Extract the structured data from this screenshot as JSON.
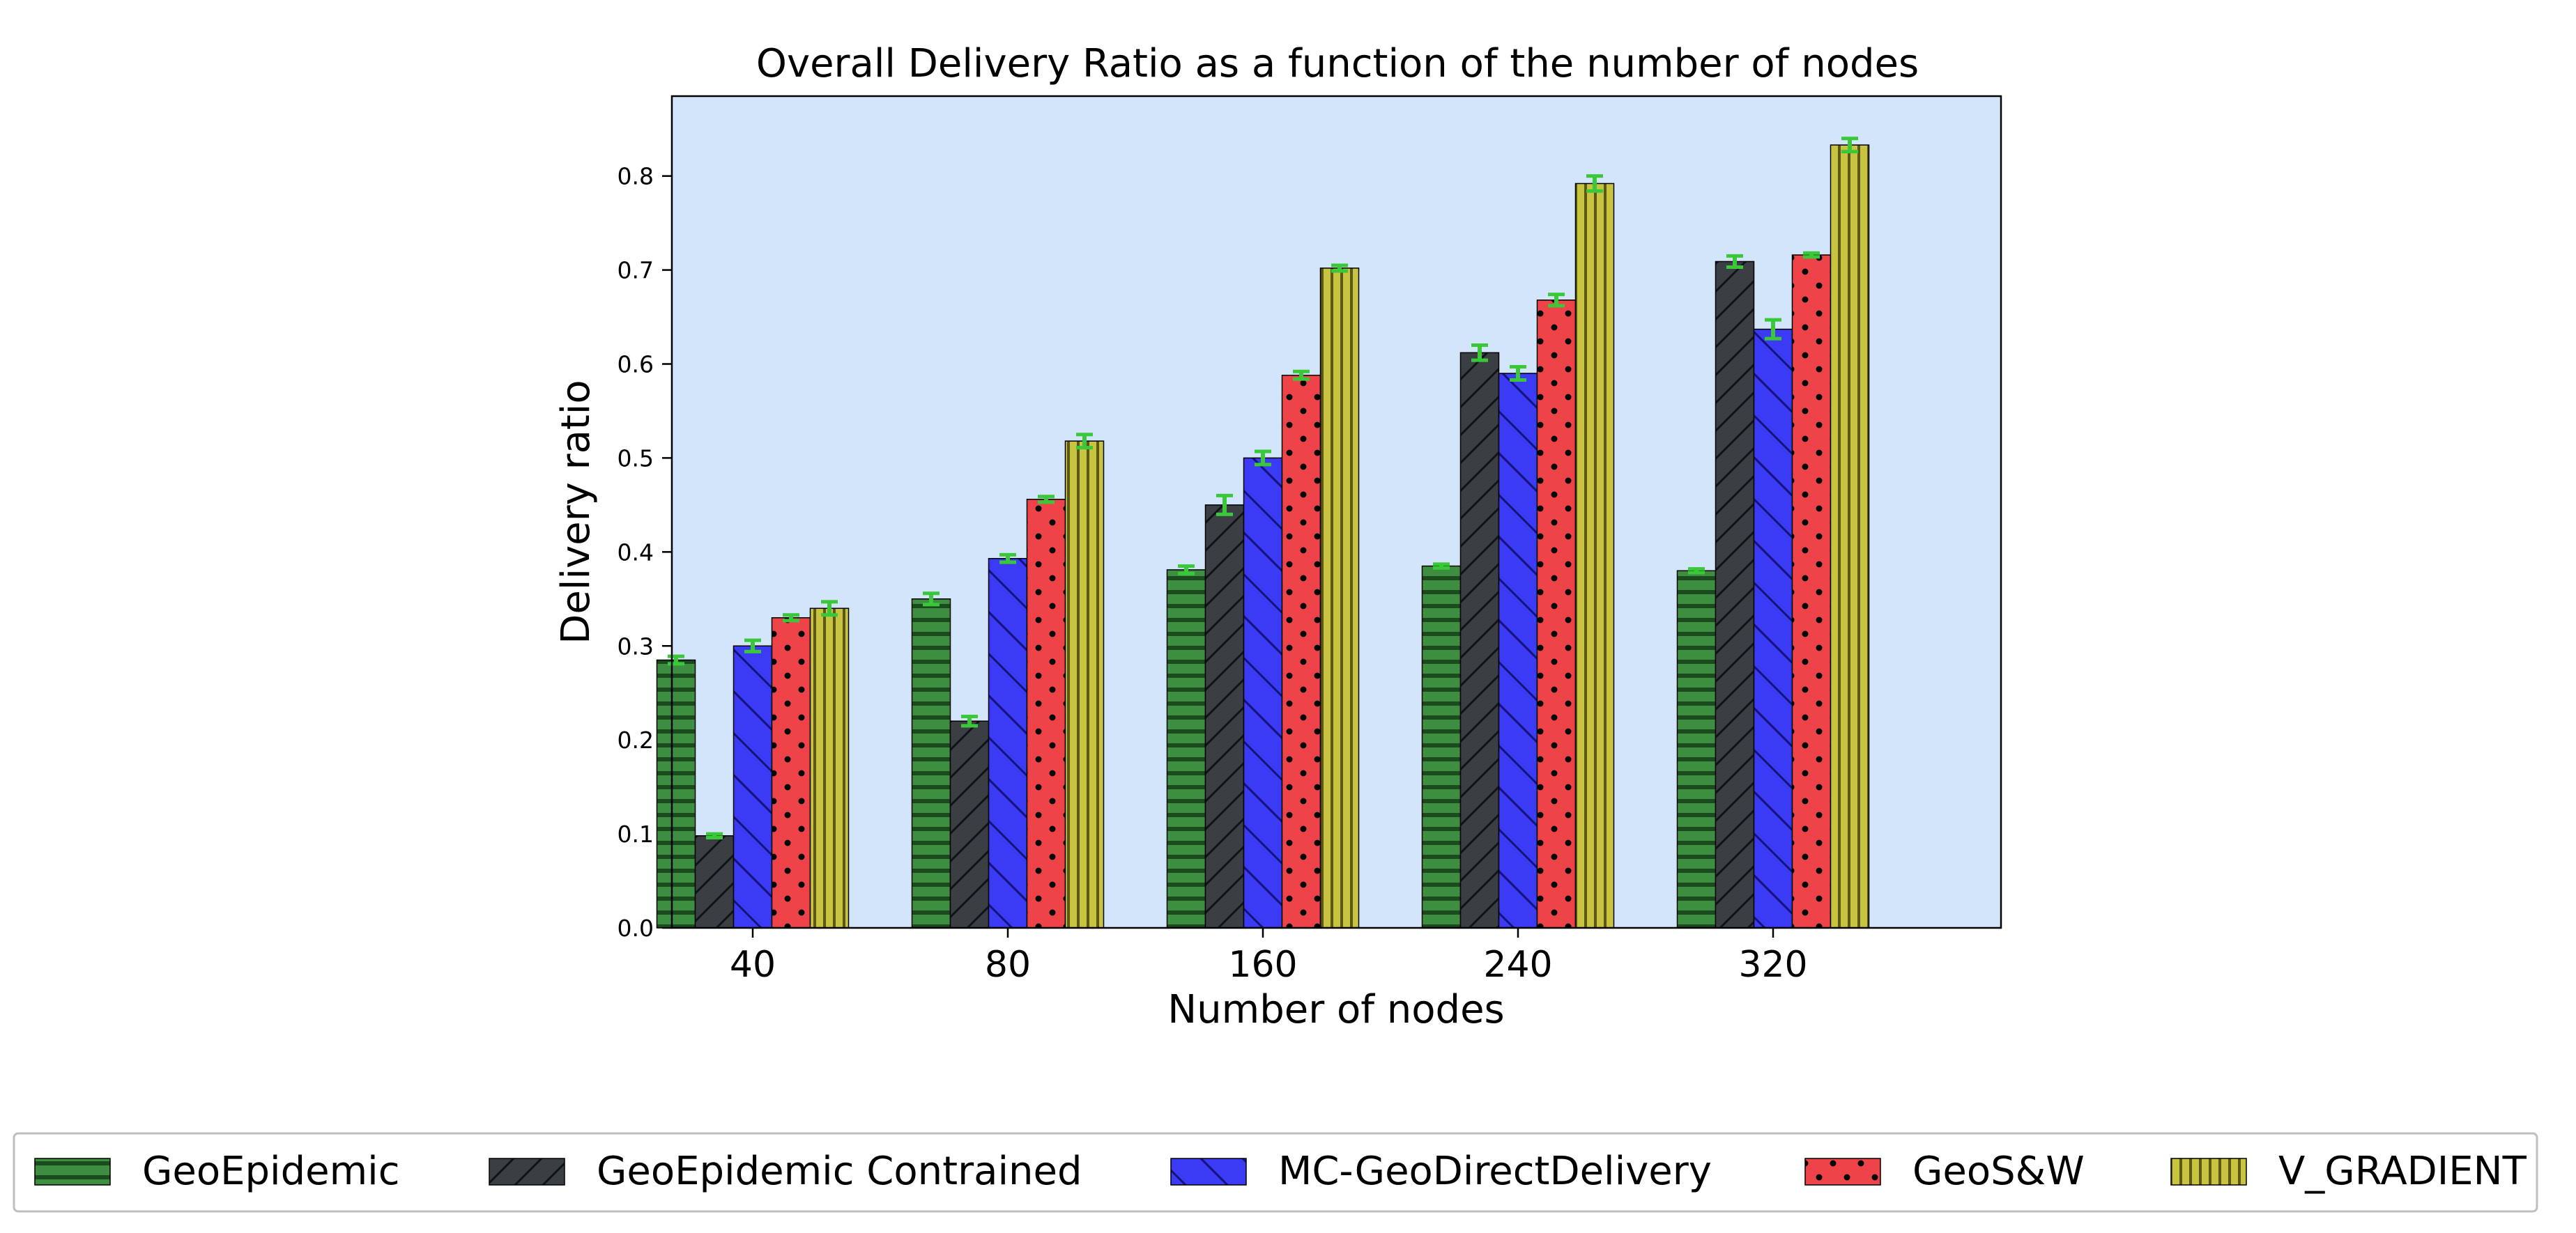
{
  "chart_data": {
    "type": "bar",
    "title": "Overall Delivery Ratio as a function of the number of nodes",
    "xlabel": "Number of nodes",
    "ylabel": "Delivery ratio",
    "categories": [
      "40",
      "80",
      "160",
      "240",
      "320"
    ],
    "ylim": [
      0,
      0.885
    ],
    "yticks": [
      "0.0",
      "0.1",
      "0.2",
      "0.3",
      "0.4",
      "0.5",
      "0.6",
      "0.7",
      "0.8"
    ],
    "legend_position": "bottom",
    "background": "#d2e5fb",
    "errorbar_color": "#3ac83a",
    "series": [
      {
        "name": "GeoEpidemic",
        "color": "#3e8e41",
        "pattern": "horizontal",
        "values": [
          0.285,
          0.35,
          0.381,
          0.385,
          0.38
        ],
        "errors": [
          0.004,
          0.006,
          0.004,
          0.002,
          0.002
        ]
      },
      {
        "name": "GeoEpidemic Contrained",
        "color": "#3b3f44",
        "pattern": "diagonal-up",
        "values": [
          0.098,
          0.22,
          0.45,
          0.612,
          0.709
        ],
        "errors": [
          0.002,
          0.005,
          0.01,
          0.008,
          0.006
        ]
      },
      {
        "name": "MC-GeoDirectDelivery",
        "color": "#3b3bf5",
        "pattern": "diagonal-down",
        "values": [
          0.3,
          0.393,
          0.5,
          0.59,
          0.637
        ],
        "errors": [
          0.006,
          0.004,
          0.007,
          0.007,
          0.01
        ]
      },
      {
        "name": "GeoS&W",
        "color": "#ee4449",
        "pattern": "dots",
        "values": [
          0.33,
          0.456,
          0.588,
          0.668,
          0.716
        ],
        "errors": [
          0.003,
          0.003,
          0.004,
          0.006,
          0.002
        ]
      },
      {
        "name": "V_GRADIENT",
        "color": "#c9c440",
        "pattern": "vertical",
        "values": [
          0.34,
          0.518,
          0.702,
          0.792,
          0.833
        ],
        "errors": [
          0.007,
          0.007,
          0.003,
          0.008,
          0.007
        ]
      }
    ]
  }
}
